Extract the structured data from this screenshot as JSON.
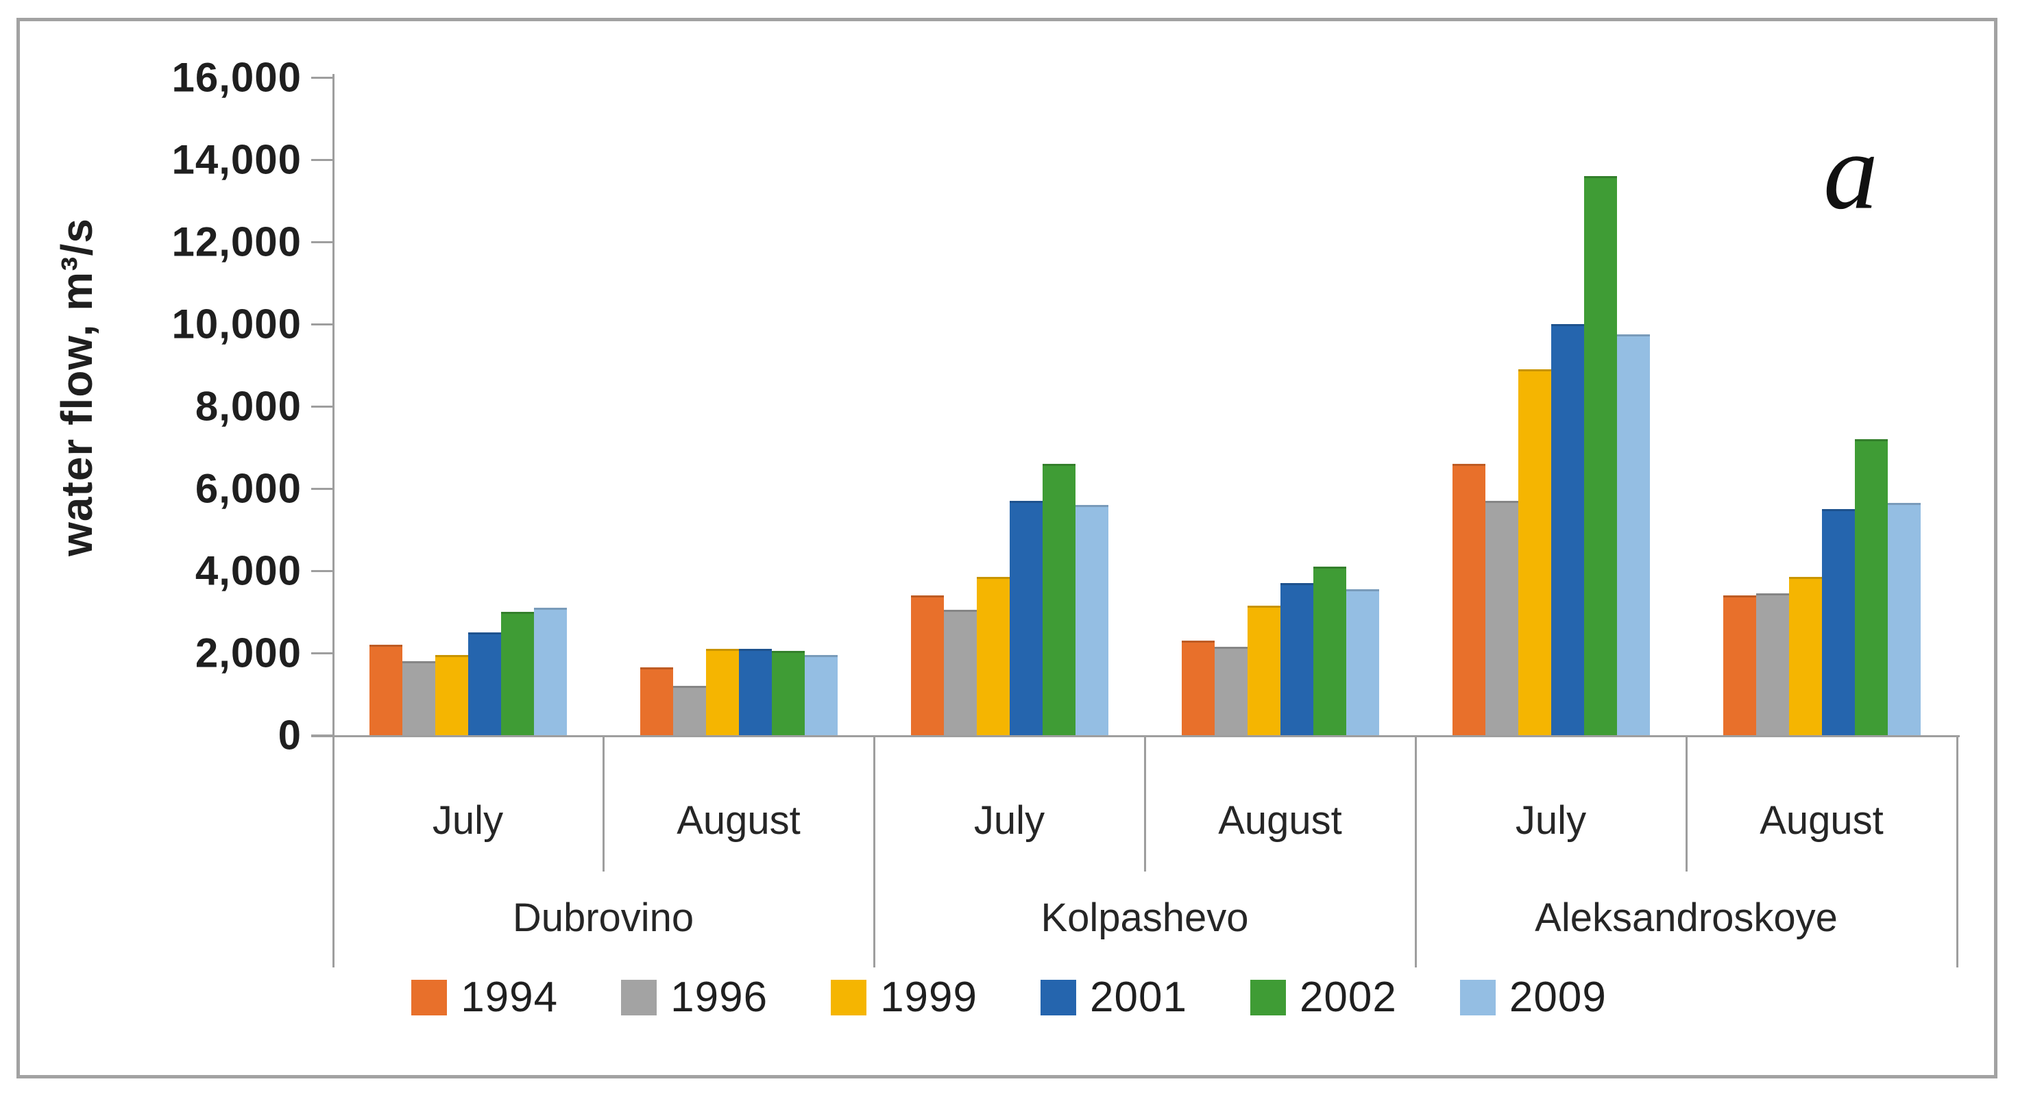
{
  "chart_data": {
    "type": "bar",
    "title": "",
    "panel_label": "a",
    "ylabel": "water flow, m³/s",
    "xlabel": "",
    "ylim": [
      0,
      16000
    ],
    "ytick_step": 2000,
    "ytick_labels": [
      "0",
      "2,000",
      "4,000",
      "6,000",
      "8,000",
      "10,000",
      "12,000",
      "14,000",
      "16,000"
    ],
    "grid": false,
    "legend_position": "bottom",
    "station_groups": [
      "Dubrovino",
      "Kolpashevo",
      "Aleksandroskoye"
    ],
    "categories": [
      {
        "station": "Dubrovino",
        "month": "July"
      },
      {
        "station": "Dubrovino",
        "month": "August"
      },
      {
        "station": "Kolpashevo",
        "month": "July"
      },
      {
        "station": "Kolpashevo",
        "month": "August"
      },
      {
        "station": "Aleksandroskoye",
        "month": "July"
      },
      {
        "station": "Aleksandroskoye",
        "month": "August"
      }
    ],
    "series": [
      {
        "name": "1994",
        "color": "#e8702b",
        "values": [
          2200,
          1650,
          3400,
          2300,
          6600,
          3400
        ]
      },
      {
        "name": "1996",
        "color": "#a3a3a3",
        "values": [
          1800,
          1200,
          3050,
          2150,
          5700,
          3450
        ]
      },
      {
        "name": "1999",
        "color": "#f5b501",
        "values": [
          1950,
          2100,
          3850,
          3150,
          8900,
          3850
        ]
      },
      {
        "name": "2001",
        "color": "#2565ae",
        "values": [
          2500,
          2100,
          5700,
          3700,
          10000,
          5500
        ]
      },
      {
        "name": "2002",
        "color": "#3f9c35",
        "values": [
          3000,
          2050,
          6600,
          4100,
          13600,
          7200
        ]
      },
      {
        "name": "2009",
        "color": "#94bee3",
        "values": [
          3100,
          1950,
          5600,
          3550,
          9750,
          5650
        ]
      }
    ]
  }
}
